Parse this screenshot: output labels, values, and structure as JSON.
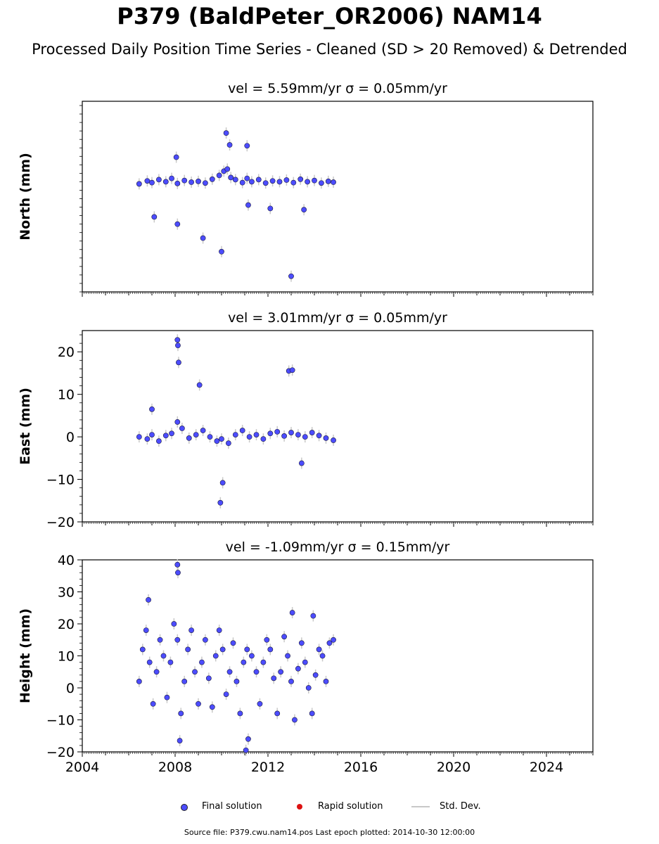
{
  "title": "P379 (BaldPeter_OR2006) NAM14",
  "subtitle": "Processed Daily Position Time Series - Cleaned (SD > 20 Removed) & Detrended",
  "footer": "Source file: P379.cwu.nam14.pos  Last epoch plotted: 2014-10-30 12:00:00",
  "legend": {
    "final": "Final solution",
    "rapid": "Rapid solution",
    "std": "Std. Dev."
  },
  "colors": {
    "final": "#4c4cff",
    "rapid": "#dd1111",
    "std": "#c8c8c8"
  },
  "chart_data": [
    {
      "type": "scatter",
      "panel_title": "vel = 5.59mm/yr   σ = 0.05mm/yr",
      "ylabel": "North (mm)",
      "xlim": [
        2004,
        2026
      ],
      "ylim": [
        -25,
        20
      ],
      "yticks": [
        20,
        10,
        0,
        -10,
        -20
      ],
      "series": [
        {
          "name": "Final solution",
          "x": [
            2006.45,
            2006.8,
            2007.0,
            2007.3,
            2007.6,
            2007.85,
            2008.1,
            2008.4,
            2008.7,
            2009.0,
            2009.3,
            2009.6,
            2009.9,
            2010.1,
            2010.25,
            2010.4,
            2010.6,
            2010.9,
            2011.1,
            2011.3,
            2011.6,
            2011.9,
            2012.2,
            2012.5,
            2012.8,
            2013.1,
            2013.4,
            2013.7,
            2014.0,
            2014.3,
            2014.6,
            2014.82,
            2008.05,
            2008.1,
            2007.1,
            2009.2,
            2010.0,
            2010.2,
            2010.35,
            2011.1,
            2011.15,
            2013.0,
            2012.1,
            2013.55
          ],
          "y": [
            0.5,
            1.2,
            0.8,
            1.5,
            1.0,
            1.8,
            0.6,
            1.3,
            0.9,
            1.1,
            0.7,
            1.6,
            2.5,
            3.5,
            4.0,
            2.0,
            1.5,
            0.8,
            1.8,
            1.0,
            1.5,
            0.7,
            1.2,
            1.0,
            1.4,
            0.8,
            1.6,
            1.0,
            1.3,
            0.7,
            1.1,
            0.9,
            6.8,
            -9.0,
            -7.3,
            -12.3,
            -15.5,
            12.5,
            9.7,
            9.5,
            -4.5,
            -21.3,
            -5.3,
            -5.6
          ]
        }
      ]
    },
    {
      "type": "scatter",
      "panel_title": "vel = 3.01mm/yr   σ = 0.05mm/yr",
      "ylabel": "East (mm)",
      "xlim": [
        2004,
        2026
      ],
      "ylim": [
        -20,
        25
      ],
      "yticks": [
        20,
        10,
        0,
        -10,
        -20
      ],
      "series": [
        {
          "name": "Final solution",
          "x": [
            2006.45,
            2006.8,
            2007.0,
            2007.3,
            2007.6,
            2007.85,
            2008.1,
            2008.3,
            2008.6,
            2008.9,
            2009.2,
            2009.5,
            2009.8,
            2010.0,
            2010.3,
            2010.6,
            2010.9,
            2011.2,
            2011.5,
            2011.8,
            2012.1,
            2012.4,
            2012.7,
            2013.0,
            2013.3,
            2013.6,
            2013.9,
            2014.2,
            2014.5,
            2014.82,
            2008.1,
            2008.12,
            2008.15,
            2009.05,
            2012.9,
            2013.05,
            2009.95,
            2010.05,
            2013.45,
            2007.0
          ],
          "y": [
            0.0,
            -0.5,
            0.5,
            -1.0,
            0.3,
            0.8,
            3.5,
            2.0,
            -0.3,
            0.5,
            1.5,
            0.0,
            -1.0,
            -0.5,
            -1.5,
            0.5,
            1.5,
            0.0,
            0.5,
            -0.5,
            0.8,
            1.2,
            0.2,
            1.0,
            0.5,
            0.0,
            1.0,
            0.3,
            -0.3,
            -0.8,
            22.8,
            21.5,
            17.5,
            12.2,
            15.5,
            15.7,
            -15.5,
            -10.8,
            -6.2,
            6.5
          ]
        }
      ]
    },
    {
      "type": "scatter",
      "panel_title": "vel = -1.09mm/yr   σ = 0.15mm/yr",
      "ylabel": "Height (mm)",
      "xlim": [
        2004,
        2026
      ],
      "xticks": [
        2004,
        2008,
        2012,
        2016,
        2020,
        2024
      ],
      "ylim": [
        -20,
        40
      ],
      "yticks": [
        40,
        30,
        20,
        10,
        0,
        -10,
        -20
      ],
      "series": [
        {
          "name": "Final solution",
          "x": [
            2006.45,
            2006.6,
            2006.75,
            2006.9,
            2007.05,
            2007.2,
            2007.35,
            2007.5,
            2007.65,
            2007.8,
            2007.95,
            2008.1,
            2008.25,
            2008.4,
            2008.55,
            2008.7,
            2008.85,
            2009.0,
            2009.15,
            2009.3,
            2009.45,
            2009.6,
            2009.75,
            2009.9,
            2010.05,
            2010.2,
            2010.35,
            2010.5,
            2010.65,
            2010.8,
            2010.95,
            2011.1,
            2011.3,
            2011.5,
            2011.65,
            2011.8,
            2011.95,
            2012.1,
            2012.25,
            2012.4,
            2012.55,
            2012.7,
            2012.85,
            2013.0,
            2013.15,
            2013.3,
            2013.45,
            2013.6,
            2013.75,
            2013.9,
            2014.05,
            2014.2,
            2014.35,
            2014.5,
            2014.65,
            2014.82,
            2008.1,
            2008.12,
            2006.85,
            2008.2,
            2011.15,
            2011.05,
            2013.05,
            2013.95
          ],
          "y": [
            2,
            12,
            18,
            8,
            -5,
            5,
            15,
            10,
            -3,
            8,
            20,
            15,
            -8,
            2,
            12,
            18,
            5,
            -5,
            8,
            15,
            3,
            -6,
            10,
            18,
            12,
            -2,
            5,
            14,
            2,
            -8,
            8,
            12,
            10,
            5,
            -5,
            8,
            15,
            12,
            3,
            -8,
            5,
            16,
            10,
            2,
            -10,
            6,
            14,
            8,
            0,
            -8,
            4,
            12,
            10,
            2,
            14,
            15,
            38.5,
            36.0,
            27.5,
            -16.5,
            -16.0,
            -19.5,
            23.5,
            22.5
          ]
        }
      ]
    }
  ]
}
